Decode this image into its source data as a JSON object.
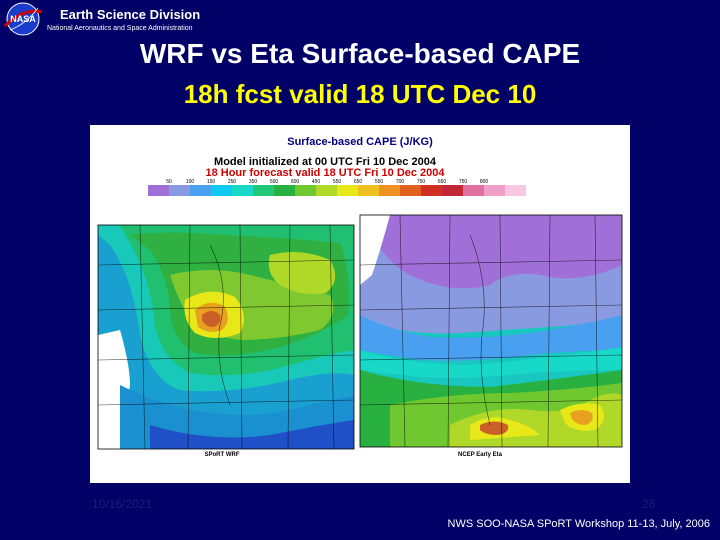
{
  "header": {
    "org_title": "Earth Science Division",
    "org_subtitle": "National Aeronautics and Space Administration",
    "logo_text": "NASA"
  },
  "slide": {
    "title": "WRF vs Eta Surface-based CAPE",
    "subtitle": "18h fcst valid 18 UTC Dec 10"
  },
  "figure": {
    "heading": "Surface-based CAPE (J/KG)",
    "init_line": "Model initialized at 00 UTC Fri 10 Dec 2004",
    "valid_line": "18 Hour forecast valid 18 UTC Fri 10 Dec 2004",
    "scale_values": [
      "50",
      "100",
      "150",
      "250",
      "350",
      "500",
      "600",
      "450",
      "550",
      "650",
      "550",
      "700",
      "750",
      "650",
      "750",
      "800"
    ],
    "left_panel_label": "SPoRT WRF",
    "right_panel_label": "NCEP Early Eta"
  },
  "footer": {
    "date": "10/16/2021",
    "page": "26",
    "workshop": "NWS SOO-NASA SPoRT Workshop 11-13, July, 2006"
  },
  "colors": {
    "background": "#000066",
    "subtitle": "#ffff00",
    "heading": "#000080",
    "valid_line": "#cc0000"
  }
}
